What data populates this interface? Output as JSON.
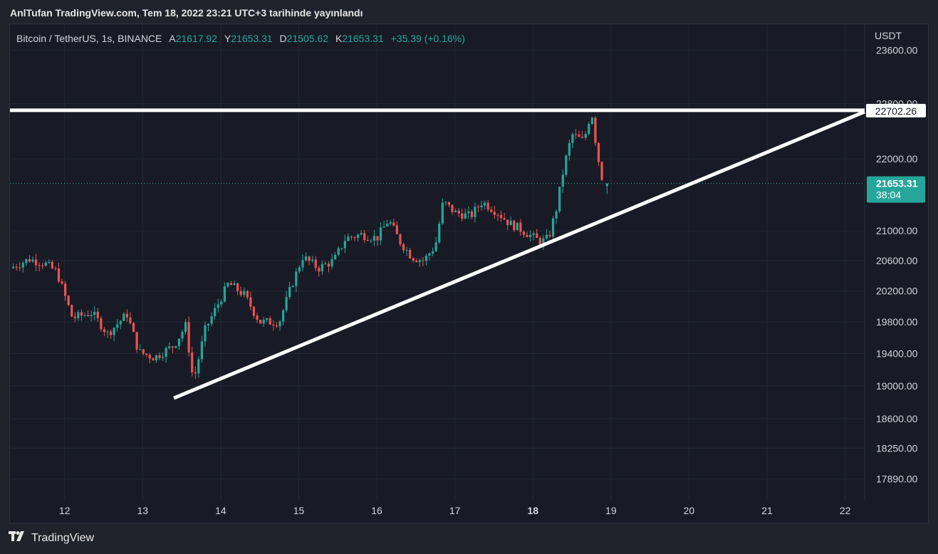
{
  "header": {
    "title": "AnlTufan TradingView.com, Tem 18, 2022 23:21 UTC+3 tarihinde yayınlandı"
  },
  "symbol_bar": {
    "name": "Bitcoin / TetherUS, 1s, BINANCE",
    "open_label": "A",
    "open_value": "21617.92",
    "high_label": "Y",
    "high_value": "21653.31",
    "low_label": "D",
    "low_value": "21505.62",
    "close_label": "K",
    "close_value": "21653.31",
    "change": "+35.39 (+0.16%)"
  },
  "price_axis": {
    "currency": "USDT",
    "resistance_tag": "22702.26",
    "last_price_tag": "21653.31",
    "countdown": "38:04"
  },
  "footer": {
    "brand": "TradingView"
  },
  "colors": {
    "up": "#26a69a",
    "down": "#ef5350",
    "background": "#181b25",
    "grid": "#242836",
    "text": "#d1d4dc",
    "trendline": "#ffffff"
  },
  "chart_data": {
    "type": "candlestick",
    "interval": "1h",
    "x_tick_labels": [
      "12",
      "13",
      "14",
      "15",
      "16",
      "17",
      "18",
      "19",
      "20",
      "21",
      "22"
    ],
    "y_tick_labels": [
      "23600.00",
      "22800.00",
      "22000.00",
      "21000.00",
      "20600.00",
      "20200.00",
      "19800.00",
      "19400.00",
      "19000.00",
      "18600.00",
      "18250.00",
      "17890.00"
    ],
    "y_log_scale": true,
    "y_range": [
      17650,
      24000
    ],
    "x_range": [
      11.3,
      22.25
    ],
    "grid": true,
    "close_path": [
      [
        11.3,
        20500
      ],
      [
        11.55,
        20620
      ],
      [
        11.75,
        20560
      ],
      [
        11.9,
        20450
      ],
      [
        12.1,
        19850
      ],
      [
        12.35,
        19920
      ],
      [
        12.55,
        19650
      ],
      [
        12.8,
        19900
      ],
      [
        12.95,
        19420
      ],
      [
        13.15,
        19350
      ],
      [
        13.4,
        19500
      ],
      [
        13.55,
        19750
      ],
      [
        13.65,
        19050
      ],
      [
        13.8,
        19700
      ],
      [
        13.95,
        20000
      ],
      [
        14.1,
        20300
      ],
      [
        14.3,
        20150
      ],
      [
        14.5,
        19800
      ],
      [
        14.75,
        19800
      ],
      [
        14.9,
        20250
      ],
      [
        15.05,
        20650
      ],
      [
        15.25,
        20500
      ],
      [
        15.45,
        20600
      ],
      [
        15.6,
        20900
      ],
      [
        15.8,
        20950
      ],
      [
        16.0,
        20900
      ],
      [
        16.15,
        21150
      ],
      [
        16.3,
        20850
      ],
      [
        16.45,
        20650
      ],
      [
        16.6,
        20600
      ],
      [
        16.75,
        20800
      ],
      [
        16.85,
        21400
      ],
      [
        17.0,
        21250
      ],
      [
        17.2,
        21200
      ],
      [
        17.35,
        21400
      ],
      [
        17.55,
        21250
      ],
      [
        17.7,
        21100
      ],
      [
        17.8,
        21050
      ],
      [
        17.95,
        20950
      ],
      [
        18.1,
        20850
      ],
      [
        18.2,
        20900
      ],
      [
        18.3,
        21300
      ],
      [
        18.4,
        21900
      ],
      [
        18.5,
        22350
      ],
      [
        18.65,
        22250
      ],
      [
        18.75,
        22700
      ],
      [
        18.82,
        22100
      ],
      [
        18.9,
        21650
      ],
      [
        18.95,
        21653.31
      ]
    ],
    "last_candle": {
      "open": 21617.92,
      "high": 21653.31,
      "low": 21505.62,
      "close": 21653.31
    },
    "resistance_level": 22702.26,
    "support_trendline": [
      [
        13.4,
        18850
      ],
      [
        22.25,
        22680
      ]
    ],
    "annotation_lines": [
      "horizontal resistance at 22702.26",
      "ascending support trendline"
    ]
  }
}
